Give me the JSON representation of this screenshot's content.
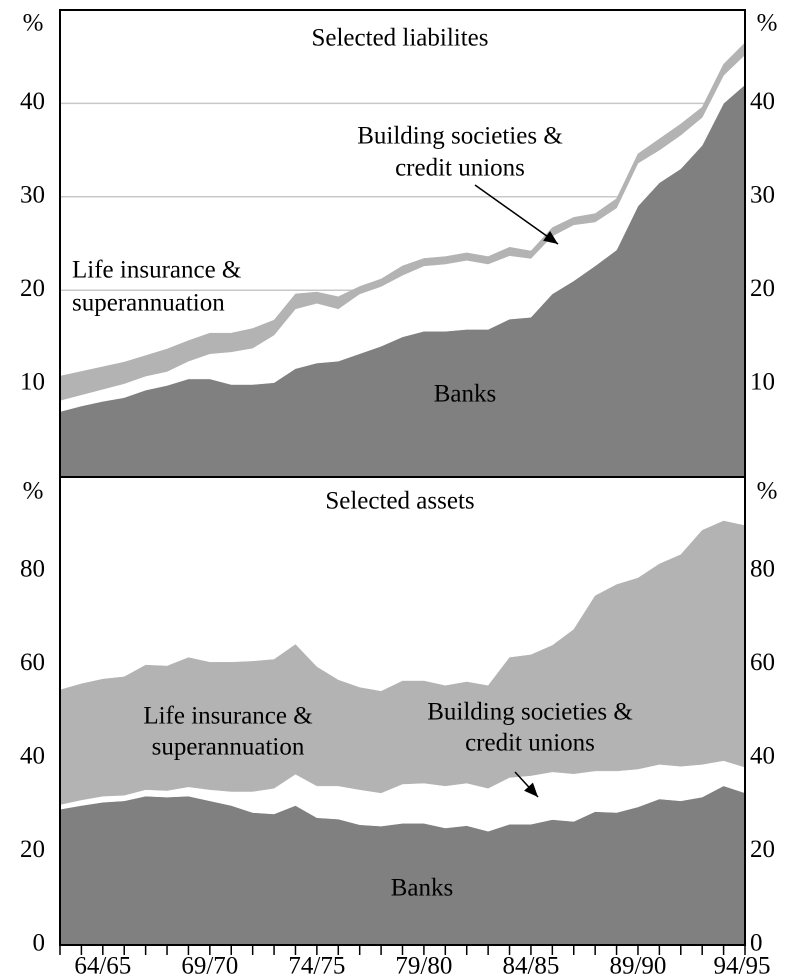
{
  "chart_data": [
    {
      "type": "area",
      "stacked": true,
      "title": "Selected liabilites",
      "unit": "%",
      "ylim": [
        0,
        50
      ],
      "yticks": [
        10,
        20,
        30,
        40
      ],
      "grid": true,
      "series": [
        {
          "name": [
            "Banks"
          ],
          "color": "#808080",
          "values": [
            7.0,
            7.6,
            8.1,
            8.5,
            9.3,
            9.8,
            10.5,
            10.5,
            9.9,
            9.9,
            10.1,
            11.6,
            12.2,
            12.4,
            13.2,
            14.0,
            15.0,
            15.6,
            15.6,
            15.8,
            15.8,
            16.9,
            17.1,
            19.6,
            21.0,
            22.6,
            24.3,
            29.0,
            31.5,
            33.0,
            35.5,
            40.0,
            42.0
          ]
        },
        {
          "name": [
            "Building societies &",
            "credit unions"
          ],
          "color": "#ffffff",
          "values": [
            1.2,
            1.2,
            1.3,
            1.5,
            1.5,
            1.5,
            1.9,
            2.7,
            3.5,
            3.9,
            5.1,
            6.4,
            6.4,
            5.6,
            6.4,
            6.4,
            6.6,
            7.0,
            7.2,
            7.4,
            7.0,
            6.8,
            6.3,
            6.2,
            6.0,
            4.7,
            4.5,
            4.6,
            3.5,
            3.6,
            3.0,
            3.0,
            3.2
          ]
        },
        {
          "name": [
            "Life insurance &",
            "superannuation"
          ],
          "color": "#b3b3b3",
          "values": [
            2.6,
            2.5,
            2.4,
            2.3,
            2.2,
            2.4,
            2.2,
            2.2,
            2.0,
            2.1,
            1.6,
            1.6,
            1.2,
            1.3,
            0.8,
            0.8,
            1.0,
            0.8,
            0.8,
            0.8,
            0.8,
            0.9,
            0.8,
            0.9,
            0.8,
            0.9,
            1.0,
            1.0,
            1.2,
            1.2,
            1.1,
            1.2,
            1.3
          ]
        }
      ]
    },
    {
      "type": "area",
      "stacked": true,
      "title": "Selected assets",
      "unit": "%",
      "categories": [
        null,
        null,
        "64/65",
        null,
        null,
        null,
        null,
        "69/70",
        null,
        null,
        null,
        null,
        "74/75",
        null,
        null,
        null,
        null,
        "79/80",
        null,
        null,
        null,
        null,
        "84/85",
        null,
        null,
        null,
        null,
        "89/90",
        null,
        null,
        null,
        null,
        "94/95"
      ],
      "ylim": [
        0,
        100
      ],
      "yticks": [
        0,
        20,
        40,
        60,
        80
      ],
      "grid": false,
      "series": [
        {
          "name": [
            "Banks"
          ],
          "color": "#808080",
          "values": [
            29.0,
            29.8,
            30.5,
            30.8,
            31.8,
            31.6,
            31.8,
            30.8,
            29.8,
            28.3,
            28.0,
            29.8,
            27.2,
            26.9,
            25.7,
            25.4,
            26.0,
            26.0,
            25.0,
            25.5,
            24.3,
            25.8,
            25.8,
            26.8,
            26.4,
            28.5,
            28.3,
            29.5,
            31.2,
            30.8,
            31.6,
            34.0,
            32.5
          ]
        },
        {
          "name": [
            "Building societies &",
            "credit unions"
          ],
          "color": "#ffffff",
          "values": [
            1.0,
            1.2,
            1.3,
            1.2,
            1.4,
            1.4,
            2.0,
            2.4,
            3.0,
            4.5,
            5.5,
            6.7,
            6.8,
            7.1,
            7.5,
            7.1,
            8.4,
            8.6,
            9.0,
            9.1,
            9.2,
            10.0,
            10.4,
            10.2,
            10.2,
            8.7,
            8.9,
            8.1,
            7.4,
            7.4,
            7.0,
            5.4,
            5.5
          ]
        },
        {
          "name": [
            "Life insurance &",
            "superannuation"
          ],
          "color": "#b3b3b3",
          "values": [
            24.5,
            24.8,
            25.0,
            25.3,
            26.6,
            26.6,
            27.6,
            27.2,
            27.6,
            27.8,
            27.5,
            27.7,
            25.4,
            22.6,
            21.8,
            21.7,
            22.0,
            21.8,
            21.4,
            21.6,
            21.9,
            25.6,
            25.8,
            27.0,
            30.8,
            37.4,
            39.8,
            40.8,
            42.8,
            45.2,
            50.0,
            51.2,
            51.6
          ]
        }
      ]
    }
  ]
}
